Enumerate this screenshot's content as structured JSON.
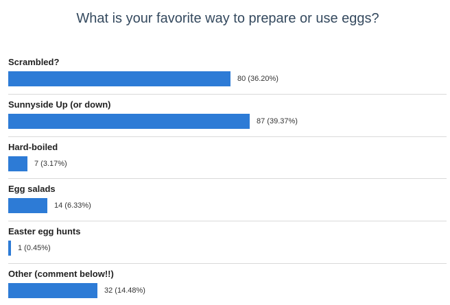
{
  "poll": {
    "title": "What is your favorite way to prepare or use eggs?"
  },
  "chart_data": {
    "type": "bar",
    "orientation": "horizontal",
    "title": "What is your favorite way to prepare or use eggs?",
    "categories": [
      "Scrambled?",
      "Sunnyside Up (or down)",
      "Hard-boiled",
      "Egg salads",
      "Easter egg hunts",
      "Other (comment below!!)"
    ],
    "values": [
      80,
      87,
      7,
      14,
      1,
      32
    ],
    "percentages": [
      "36.20%",
      "39.37%",
      "3.17%",
      "6.33%",
      "0.45%",
      "14.48%"
    ],
    "value_labels": [
      "80 (36.20%)",
      "87 (39.37%)",
      "7 (3.17%)",
      "14 (6.33%)",
      "1 (0.45%)",
      "32 (14.48%)"
    ],
    "colors": {
      "bar": "#2d7bd6"
    },
    "grid": false
  }
}
